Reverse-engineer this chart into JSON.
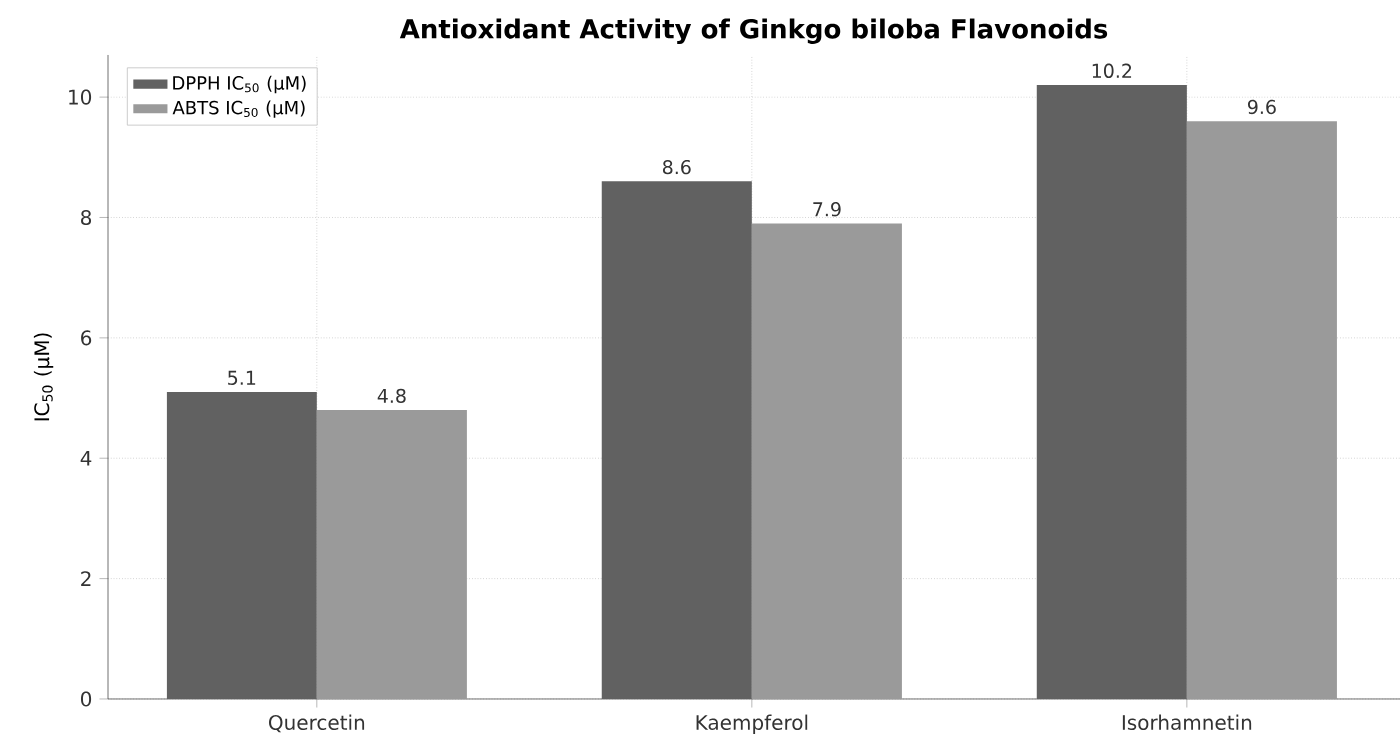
{
  "chart_data": {
    "type": "bar",
    "title": "Antioxidant Activity of Ginkgo biloba Flavonoids",
    "ylabel": "IC$_{50}$ (µM)",
    "categories": [
      "Quercetin",
      "Kaempferol",
      "Isorhamnetin"
    ],
    "series": [
      {
        "name": "DPPH IC$_{50}$ (µM)",
        "color": "#616161",
        "values": [
          5.1,
          8.6,
          10.2
        ]
      },
      {
        "name": "ABTS IC$_{50}$ (µM)",
        "color": "#9a9a9a",
        "values": [
          4.8,
          7.9,
          9.6
        ]
      }
    ],
    "ylim": [
      0,
      10.7
    ],
    "yticks": [
      0,
      2,
      4,
      6,
      8,
      10
    ],
    "grid": true,
    "legend": "top left",
    "data_labels": true
  }
}
